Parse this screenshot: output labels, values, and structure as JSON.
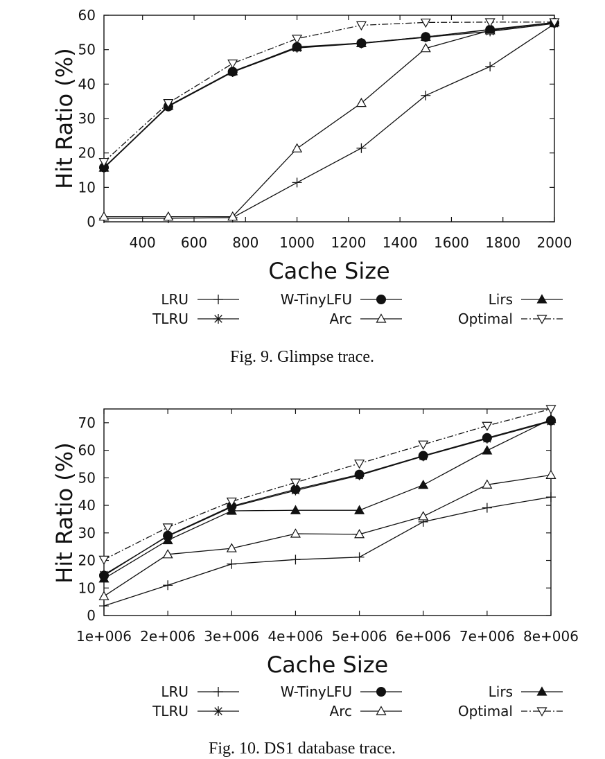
{
  "chart_data": [
    {
      "type": "line",
      "caption": "Fig. 9.  Glimpse trace.",
      "xlabel": "Cache Size",
      "ylabel": "Hit Ratio (%)",
      "xlim": [
        250,
        2000
      ],
      "ylim": [
        0,
        60
      ],
      "xticks": [
        400,
        600,
        800,
        1000,
        1200,
        1400,
        1600,
        1800,
        2000
      ],
      "xtick_labels": [
        "400",
        "600",
        "800",
        "1000",
        "1200",
        "1400",
        "1600",
        "1800",
        "2000"
      ],
      "yticks": [
        0,
        10,
        20,
        30,
        40,
        50,
        60
      ],
      "ytick_labels": [
        "0",
        "10",
        "20",
        "30",
        "40",
        "50",
        "60"
      ],
      "x": [
        250,
        500,
        750,
        1000,
        1250,
        1500,
        1750,
        2000
      ],
      "series": [
        {
          "name": "LRU",
          "marker": "plus",
          "dash": "",
          "values": [
            1.0,
            1.0,
            1.2,
            11.4,
            21.4,
            36.7,
            45.1,
            57.5
          ]
        },
        {
          "name": "TLRU",
          "marker": "star",
          "dash": "",
          "values": [
            15.6,
            33.5,
            43.5,
            50.5,
            51.8,
            53.6,
            55.3,
            57.6
          ]
        },
        {
          "name": "W-TinyLFU",
          "marker": "circle",
          "dash": "",
          "values": [
            15.8,
            33.5,
            43.6,
            50.8,
            51.9,
            53.7,
            55.8,
            57.8
          ]
        },
        {
          "name": "Arc",
          "marker": "triangle-up",
          "dash": "",
          "values": [
            1.5,
            1.5,
            1.5,
            21.3,
            34.5,
            50.4,
            55.6,
            57.9
          ]
        },
        {
          "name": "Lirs",
          "marker": "triangle-up-filled",
          "dash": "",
          "values": [
            15.7,
            33.7,
            43.7,
            50.7,
            51.9,
            53.7,
            55.9,
            57.9
          ]
        },
        {
          "name": "Optimal",
          "marker": "triangle-down",
          "dash": "9 3 2 3",
          "values": [
            17.4,
            34.5,
            46.0,
            53.2,
            57.1,
            57.9,
            58.0,
            58.0
          ]
        }
      ]
    },
    {
      "type": "line",
      "caption": "Fig. 10.  DS1 database trace.",
      "xlabel": "Cache Size",
      "ylabel": "Hit Ratio (%)",
      "xlim": [
        1000000,
        8000000
      ],
      "ylim": [
        0,
        75
      ],
      "xticks": [
        1000000,
        2000000,
        3000000,
        4000000,
        5000000,
        6000000,
        7000000,
        8000000
      ],
      "xtick_labels": [
        "1e+006",
        "2e+006",
        "3e+006",
        "4e+006",
        "5e+006",
        "6e+006",
        "7e+006",
        "8e+006"
      ],
      "yticks": [
        0,
        10,
        20,
        30,
        40,
        50,
        60,
        70
      ],
      "ytick_labels": [
        "0",
        "10",
        "20",
        "30",
        "40",
        "50",
        "60",
        "70"
      ],
      "x": [
        1000000,
        2000000,
        3000000,
        4000000,
        5000000,
        6000000,
        7000000,
        8000000
      ],
      "series": [
        {
          "name": "LRU",
          "marker": "plus",
          "dash": "",
          "values": [
            3.5,
            11.0,
            18.7,
            20.3,
            21.2,
            34.0,
            39.1,
            43.0
          ]
        },
        {
          "name": "TLRU",
          "marker": "star",
          "dash": "",
          "values": [
            14.8,
            28.8,
            39.4,
            45.4,
            50.9,
            57.8,
            64.2,
            70.5
          ]
        },
        {
          "name": "W-TinyLFU",
          "marker": "circle",
          "dash": "",
          "values": [
            14.5,
            29.0,
            39.7,
            45.8,
            51.2,
            58.0,
            64.5,
            70.8
          ]
        },
        {
          "name": "Arc",
          "marker": "triangle-up",
          "dash": "",
          "values": [
            7.0,
            22.2,
            24.4,
            29.7,
            29.5,
            36.0,
            47.5,
            51.0
          ]
        },
        {
          "name": "Lirs",
          "marker": "triangle-up-filled",
          "dash": "",
          "values": [
            13.4,
            27.3,
            38.0,
            38.2,
            38.2,
            47.4,
            59.9,
            71.3
          ]
        },
        {
          "name": "Optimal",
          "marker": "triangle-down",
          "dash": "9 3 2 3",
          "values": [
            20.3,
            32.0,
            41.4,
            48.3,
            55.2,
            62.1,
            68.9,
            75.0
          ]
        }
      ]
    }
  ]
}
